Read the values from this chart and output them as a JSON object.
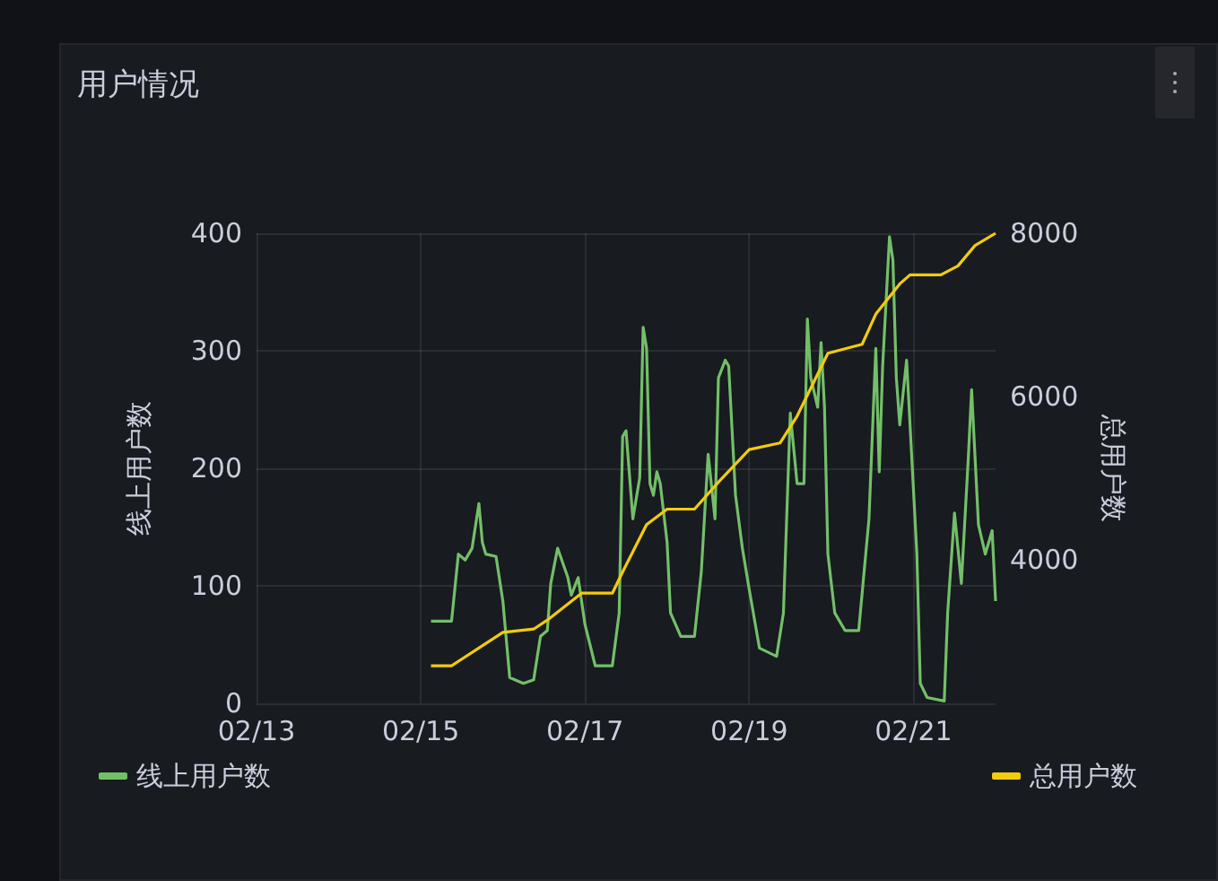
{
  "chart_data": {
    "type": "line",
    "title": "用户情况",
    "ylabel": "线上用户数",
    "y2label": "总用户数",
    "xlim": [
      "--02-13",
      "--02-22"
    ],
    "xticks": [
      {
        "value": "--02-13",
        "label": "02/13"
      },
      {
        "value": "--02-15",
        "label": "02/15"
      },
      {
        "value": "--02-17",
        "label": "02/17"
      },
      {
        "value": "--02-19",
        "label": "02/19"
      },
      {
        "value": "--02-21",
        "label": "02/21"
      }
    ],
    "ylim": [
      0,
      400
    ],
    "yticks": [
      0,
      100,
      200,
      300,
      400
    ],
    "y2lim": [
      2240,
      8000
    ],
    "y2ticks": [
      4000,
      6000,
      8000
    ],
    "grid": true,
    "legend": "bottom",
    "marker": "none",
    "line_style": "solid",
    "series": [
      {
        "name": "线上用户数",
        "color": "#73bf69",
        "x": [
          "--02-15T03:00",
          "--02-15T09:00",
          "--02-15T11:00",
          "--02-15T13:00",
          "--02-15T15:00",
          "--02-15T17:00",
          "--02-15T18:00",
          "--02-15T19:00",
          "--02-15T22:00",
          "--02-16T00:00",
          "--02-16T02:00",
          "--02-16T06:00",
          "--02-16T09:00",
          "--02-16T11:00",
          "--02-16T13:00",
          "--02-16T14:00",
          "--02-16T16:00",
          "--02-16T19:00",
          "--02-16T20:00",
          "--02-16T22:00",
          "--02-17T00:00",
          "--02-17T03:00",
          "--02-17T08:00",
          "--02-17T10:00",
          "--02-17T11:00",
          "--02-17T12:00",
          "--02-17T14:00",
          "--02-17T16:00",
          "--02-17T17:00",
          "--02-17T18:00",
          "--02-17T19:00",
          "--02-17T20:00",
          "--02-17T21:00",
          "--02-17T22:00",
          "--02-18T00:00",
          "--02-18T01:00",
          "--02-18T04:00",
          "--02-18T08:00",
          "--02-18T10:00",
          "--02-18T12:00",
          "--02-18T14:00",
          "--02-18T15:00",
          "--02-18T17:00",
          "--02-18T18:00",
          "--02-18T20:00",
          "--02-18T22:00",
          "--02-19T00:00",
          "--02-19T03:00",
          "--02-19T08:00",
          "--02-19T10:00",
          "--02-19T12:00",
          "--02-19T14:00",
          "--02-19T16:00",
          "--02-19T17:00",
          "--02-19T18:00",
          "--02-19T20:00",
          "--02-19T21:00",
          "--02-19T22:00",
          "--02-19T23:00",
          "--02-20T01:00",
          "--02-20T04:00",
          "--02-20T08:00",
          "--02-20T11:00",
          "--02-20T13:00",
          "--02-20T14:00",
          "--02-20T15:00",
          "--02-20T17:00",
          "--02-20T18:00",
          "--02-20T19:00",
          "--02-20T20:00",
          "--02-20T22:00",
          "--02-20T23:00",
          "--02-21T01:00",
          "--02-21T02:00",
          "--02-21T04:00",
          "--02-21T09:00",
          "--02-21T10:00",
          "--02-21T12:00",
          "--02-21T14:00",
          "--02-21T16:00",
          "--02-21T17:00",
          "--02-21T19:00",
          "--02-21T21:00",
          "--02-21T23:00",
          "--02-22T00:00"
        ],
        "values": [
          70,
          70,
          127,
          122,
          132,
          170,
          137,
          127,
          125,
          87,
          22,
          17,
          20,
          57,
          62,
          102,
          132,
          107,
          92,
          107,
          67,
          32,
          32,
          77,
          227,
          232,
          157,
          192,
          320,
          302,
          187,
          177,
          197,
          187,
          137,
          77,
          57,
          57,
          112,
          212,
          157,
          277,
          292,
          287,
          177,
          132,
          97,
          47,
          40,
          77,
          247,
          187,
          187,
          327,
          277,
          252,
          307,
          252,
          127,
          77,
          62,
          62,
          157,
          302,
          197,
          287,
          397,
          377,
          277,
          237,
          292,
          237,
          127,
          17,
          5,
          2,
          77,
          162,
          102,
          207,
          267,
          152,
          127,
          147,
          87
        ]
      },
      {
        "name": "总用户数",
        "color": "#f2cc0c",
        "axis": "y2",
        "x": [
          "--02-15T03:00",
          "--02-15T09:00",
          "--02-16T00:00",
          "--02-16T09:00",
          "--02-16T13:00",
          "--02-16T23:00",
          "--02-17T08:00",
          "--02-17T11:00",
          "--02-17T18:00",
          "--02-18T00:00",
          "--02-18T08:00",
          "--02-18T15:00",
          "--02-19T00:00",
          "--02-19T09:00",
          "--02-19T14:00",
          "--02-19T23:00",
          "--02-20T09:00",
          "--02-20T13:00",
          "--02-20T20:00",
          "--02-20T23:00",
          "--02-21T08:00",
          "--02-21T13:00",
          "--02-21T18:00",
          "--02-22T00:00"
        ],
        "values": [
          2700,
          2700,
          3110,
          3150,
          3260,
          3590,
          3590,
          3850,
          4430,
          4620,
          4620,
          4950,
          5350,
          5430,
          5760,
          6530,
          6640,
          7010,
          7380,
          7490,
          7490,
          7600,
          7850,
          8000
        ]
      }
    ]
  }
}
